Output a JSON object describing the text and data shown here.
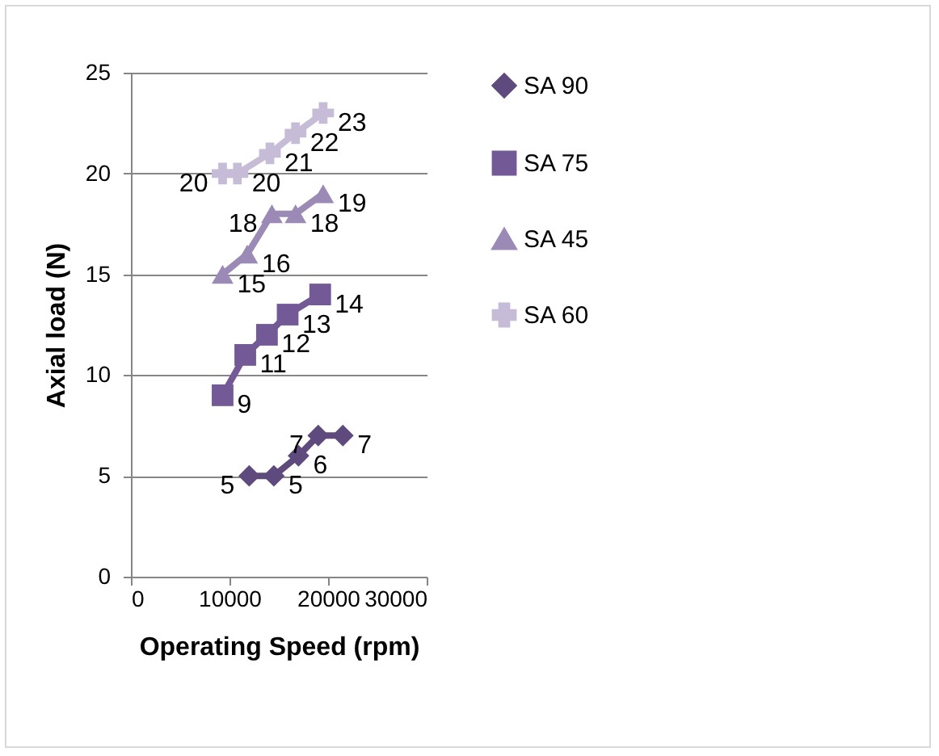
{
  "chart_data": {
    "type": "line",
    "xlabel": "Operating Speed (rpm)",
    "ylabel": "Axial load (N)",
    "xlim": [
      0,
      30000
    ],
    "xticks": [
      0,
      10000,
      20000,
      30000
    ],
    "ylim": [
      0,
      25
    ],
    "yticks": [
      0,
      5,
      10,
      15,
      20,
      25
    ],
    "grid": "y",
    "legend": "right",
    "data_labels": true,
    "series": [
      {
        "name": "SA 90",
        "color": "#5f4a7e",
        "marker": "diamond",
        "x": [
          12000,
          14500,
          17000,
          19000,
          21500
        ],
        "values": [
          5,
          5,
          6,
          7,
          7
        ]
      },
      {
        "name": "SA 75",
        "color": "#735996",
        "marker": "square",
        "x": [
          9300,
          11600,
          13800,
          15900,
          19200
        ],
        "values": [
          9,
          11,
          12,
          13,
          14
        ]
      },
      {
        "name": "SA 45",
        "color": "#9b89b6",
        "marker": "triangle",
        "x": [
          9300,
          11800,
          14300,
          16700,
          19500
        ],
        "values": [
          15,
          16,
          18,
          18,
          19
        ]
      },
      {
        "name": "SA 60",
        "color": "#c6bcd8",
        "marker": "cross",
        "x": [
          9300,
          10800,
          14100,
          16700,
          19500
        ],
        "values": [
          20,
          20,
          21,
          22,
          23
        ]
      }
    ]
  }
}
